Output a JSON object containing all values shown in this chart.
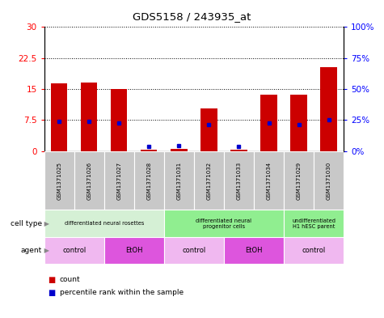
{
  "title": "GDS5158 / 243935_at",
  "samples": [
    "GSM1371025",
    "GSM1371026",
    "GSM1371027",
    "GSM1371028",
    "GSM1371031",
    "GSM1371032",
    "GSM1371033",
    "GSM1371034",
    "GSM1371029",
    "GSM1371030"
  ],
  "counts": [
    16.3,
    16.6,
    15.1,
    0.3,
    0.6,
    10.3,
    0.4,
    13.6,
    13.6,
    20.2
  ],
  "percentile_ranks": [
    24.0,
    24.0,
    22.5,
    3.5,
    4.5,
    21.5,
    4.0,
    22.5,
    21.5,
    25.5
  ],
  "ylim_left": [
    0,
    30
  ],
  "ylim_right": [
    0,
    100
  ],
  "yticks_left": [
    0,
    7.5,
    15,
    22.5,
    30
  ],
  "yticks_right": [
    0,
    25,
    50,
    75,
    100
  ],
  "cell_type_groups": [
    {
      "label": "differentiated neural rosettes",
      "start": 0,
      "end": 4,
      "color": "#d5f0d5"
    },
    {
      "label": "differentiated neural\nprogenitor cells",
      "start": 4,
      "end": 8,
      "color": "#90ee90"
    },
    {
      "label": "undifferentiated\nH1 hESC parent",
      "start": 8,
      "end": 10,
      "color": "#90ee90"
    }
  ],
  "agent_groups": [
    {
      "label": "control",
      "start": 0,
      "end": 2,
      "color": "#f0b8f0"
    },
    {
      "label": "EtOH",
      "start": 2,
      "end": 4,
      "color": "#dd55dd"
    },
    {
      "label": "control",
      "start": 4,
      "end": 6,
      "color": "#f0b8f0"
    },
    {
      "label": "EtOH",
      "start": 6,
      "end": 8,
      "color": "#dd55dd"
    },
    {
      "label": "control",
      "start": 8,
      "end": 10,
      "color": "#f0b8f0"
    }
  ],
  "bar_color": "#cc0000",
  "percentile_color": "#0000cc",
  "sample_bg": "#c8c8c8",
  "plot_bg": "#ffffff"
}
